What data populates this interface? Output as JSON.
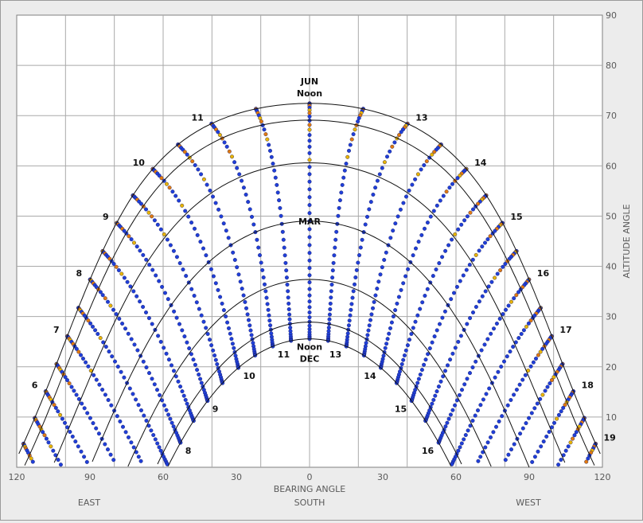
{
  "chart_data": {
    "type": "scatter",
    "title": "",
    "xlabel": "BEARING ANGLE",
    "ylabel": "ALTITUDE ANGLE",
    "xlim": [
      -120,
      120
    ],
    "ylim": [
      0,
      90
    ],
    "x_ticks": [
      {
        "value": -120,
        "label": "120"
      },
      {
        "value": -90,
        "label": "90"
      },
      {
        "value": -60,
        "label": "60"
      },
      {
        "value": -30,
        "label": "30"
      },
      {
        "value": 0,
        "label": "0"
      },
      {
        "value": 30,
        "label": "30"
      },
      {
        "value": 60,
        "label": "60"
      },
      {
        "value": 90,
        "label": "90"
      },
      {
        "value": 120,
        "label": "120"
      }
    ],
    "y_ticks": [
      10,
      20,
      30,
      40,
      50,
      60,
      70,
      80,
      90
    ],
    "direction_labels": {
      "east": "EAST",
      "south": "SOUTH",
      "west": "WEST"
    },
    "grid": true,
    "latitude_deg": 41,
    "series_colors": {
      "dots": "#1f3fd8",
      "summer_dots": "#e07a10",
      "summer_alt": "#e8b400",
      "lines": "#111111"
    },
    "month_curves": [
      {
        "label": "JUN",
        "declination": 23.44,
        "noon_label": "Noon"
      },
      {
        "label": "MAR",
        "declination": 0
      },
      {
        "label": "DEC",
        "declination": -23.44,
        "noon_label": "Noon"
      }
    ],
    "hour_labels_summer": [
      {
        "hour": 6,
        "text": "6"
      },
      {
        "hour": 7,
        "text": "7"
      },
      {
        "hour": 8,
        "text": "8"
      },
      {
        "hour": 9,
        "text": "9"
      },
      {
        "hour": 10,
        "text": "10"
      },
      {
        "hour": 11,
        "text": "11"
      },
      {
        "hour": 13,
        "text": "13"
      },
      {
        "hour": 14,
        "text": "14"
      },
      {
        "hour": 15,
        "text": "15"
      },
      {
        "hour": 16,
        "text": "16"
      },
      {
        "hour": 17,
        "text": "17"
      },
      {
        "hour": 18,
        "text": "18"
      },
      {
        "hour": 19,
        "text": "19"
      }
    ],
    "hour_labels_winter": [
      {
        "hour": 8,
        "text": "8"
      },
      {
        "hour": 9,
        "text": "9"
      },
      {
        "hour": 10,
        "text": "10"
      },
      {
        "hour": 11,
        "text": "11"
      },
      {
        "hour": 13,
        "text": "13"
      },
      {
        "hour": 14,
        "text": "14"
      },
      {
        "hour": 15,
        "text": "15"
      },
      {
        "hour": 16,
        "text": "16"
      }
    ]
  }
}
